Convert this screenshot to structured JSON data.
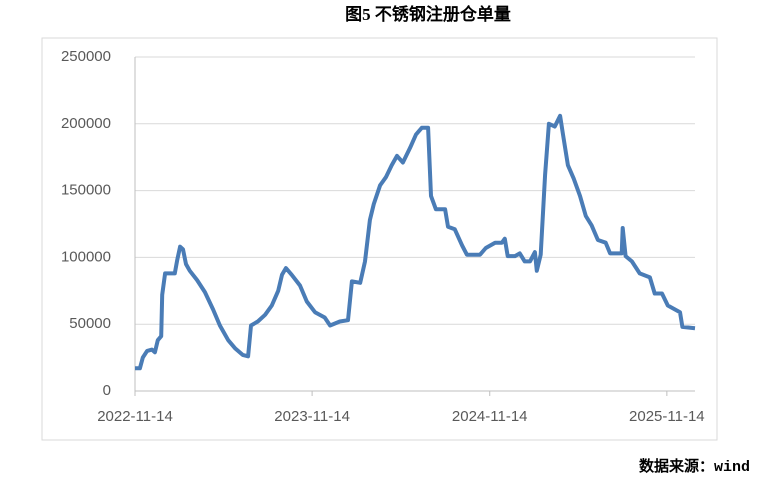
{
  "chart_data": {
    "type": "line",
    "title": "图5 不锈钢注册仓单量",
    "source": "数据来源：wind",
    "x": [
      "2022-11-14",
      "2022-11-24",
      "2022-11-30",
      "2022-12-09",
      "2022-12-19",
      "2022-12-25",
      "2022-12-31",
      "2023-01-07",
      "2023-01-09",
      "2023-01-15",
      "2023-02-04",
      "2023-02-09",
      "2023-02-15",
      "2023-02-21",
      "2023-02-27",
      "2023-03-07",
      "2023-03-22",
      "2023-04-07",
      "2023-04-24",
      "2023-05-08",
      "2023-05-25",
      "2023-06-08",
      "2023-06-24",
      "2023-07-05",
      "2023-07-11",
      "2023-07-25",
      "2023-08-09",
      "2023-08-23",
      "2023-09-05",
      "2023-09-13",
      "2023-09-21",
      "2023-10-03",
      "2023-10-20",
      "2023-11-03",
      "2023-11-20",
      "2023-12-10",
      "2023-12-21",
      "2024-01-10",
      "2024-01-27",
      "2024-02-04",
      "2024-02-21",
      "2024-03-02",
      "2024-03-12",
      "2024-03-20",
      "2024-04-02",
      "2024-04-14",
      "2024-04-26",
      "2024-05-07",
      "2024-05-19",
      "2024-06-03",
      "2024-06-15",
      "2024-06-27",
      "2024-07-10",
      "2024-07-16",
      "2024-07-26",
      "2024-08-14",
      "2024-08-20",
      "2024-09-03",
      "2024-09-18",
      "2024-09-28",
      "2024-10-25",
      "2024-11-06",
      "2024-11-25",
      "2024-12-09",
      "2024-12-15",
      "2024-12-21",
      "2025-01-05",
      "2025-01-15",
      "2025-01-25",
      "2025-02-05",
      "2025-02-15",
      "2025-02-19",
      "2025-02-27",
      "2025-03-08",
      "2025-03-16",
      "2025-03-28",
      "2025-04-08",
      "2025-04-14",
      "2025-04-24",
      "2025-05-06",
      "2025-05-19",
      "2025-05-31",
      "2025-06-12",
      "2025-06-25",
      "2025-07-11",
      "2025-07-20",
      "2025-08-13",
      "2025-08-15",
      "2025-08-21",
      "2025-09-03",
      "2025-09-19",
      "2025-10-10",
      "2025-10-20",
      "2025-11-04",
      "2025-11-16",
      "2025-12-11",
      "2025-12-16",
      "2026-01-11"
    ],
    "values": [
      17000,
      17000,
      25000,
      30000,
      31000,
      29000,
      38000,
      41000,
      72000,
      88000,
      88000,
      98000,
      108000,
      106000,
      95000,
      90000,
      83000,
      74000,
      61000,
      49000,
      38000,
      32000,
      27000,
      26000,
      49000,
      52000,
      57000,
      64000,
      75000,
      87000,
      92000,
      87000,
      79000,
      67000,
      59000,
      55000,
      49000,
      52000,
      53000,
      82000,
      81000,
      97000,
      128000,
      140000,
      154000,
      160000,
      169000,
      176000,
      171000,
      182000,
      192000,
      197000,
      197000,
      146000,
      136000,
      136000,
      123000,
      121000,
      109000,
      102000,
      102000,
      107000,
      111000,
      111000,
      114000,
      101000,
      101000,
      103000,
      97000,
      97000,
      104000,
      90000,
      102000,
      162000,
      200000,
      198000,
      206000,
      192000,
      169000,
      159000,
      146000,
      131000,
      124000,
      113000,
      111000,
      103000,
      103000,
      122000,
      101000,
      97000,
      88000,
      85000,
      73000,
      73000,
      64000,
      59000,
      48000,
      47000
    ],
    "color": "#4a7cb6",
    "xlim": [
      "2022-11-14",
      "2026-01-11"
    ],
    "xticks": [
      "2022-11-14",
      "2023-11-14",
      "2024-11-14",
      "2025-11-14"
    ],
    "ylim": [
      0,
      250000
    ],
    "yticks": [
      0,
      50000,
      100000,
      150000,
      200000,
      250000
    ],
    "grid": true
  }
}
